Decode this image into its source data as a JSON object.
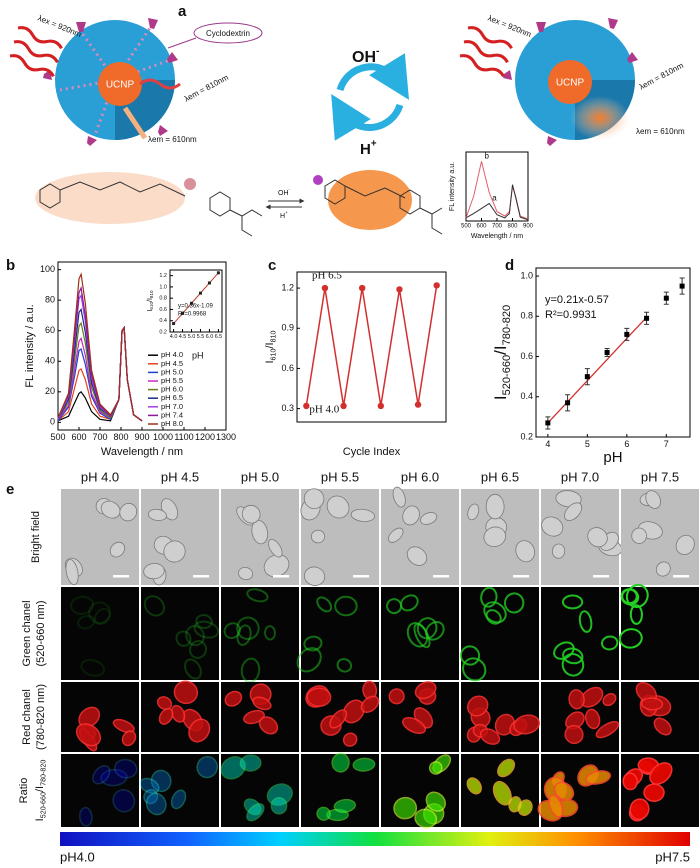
{
  "panel_a": {
    "label": "a",
    "cyclodextrin": "Cyclodextrin",
    "left": {
      "excitation": "λex = 920nm",
      "emission_nir": "λem = 810nm",
      "emission_red": "λem = 610nm",
      "core": "UCNP"
    },
    "right": {
      "excitation": "λex = 920nm",
      "emission_nir": "λem = 810nm",
      "emission_red": "λem = 610nm",
      "core": "UCNP"
    },
    "switch": {
      "base": [
        "OH",
        "-"
      ],
      "acid": [
        "H",
        "+"
      ]
    },
    "reaction": {
      "base": [
        "OH",
        "-"
      ],
      "acid": [
        "H",
        "+"
      ]
    }
  },
  "chart_data": [
    {
      "type": "line",
      "xlabel": "Wavelength / nm",
      "ylabel": "FL intensity a.u.",
      "x": [
        500,
        550,
        600,
        650,
        700,
        750,
        780,
        800,
        820,
        850,
        900
      ],
      "series": [
        {
          "name": "b",
          "color": "#e0606a",
          "values": [
            5,
            40,
            95,
            45,
            15,
            8,
            15,
            55,
            40,
            8,
            3
          ]
        },
        {
          "name": "a",
          "color": "#333333",
          "values": [
            5,
            12,
            20,
            28,
            10,
            5,
            12,
            58,
            38,
            6,
            2
          ]
        }
      ],
      "xlim": [
        500,
        900
      ],
      "xticks": [
        500,
        600,
        700,
        800,
        900
      ],
      "ylim": [
        0,
        110
      ]
    },
    {
      "type": "line",
      "label": "b",
      "xlabel": "Wavelength / nm",
      "ylabel": "FL intensity / a.u.",
      "x": [
        500,
        550,
        580,
        600,
        610,
        630,
        660,
        700,
        750,
        790,
        805,
        815,
        830,
        860,
        900
      ],
      "series": [
        {
          "name": "pH 4.0",
          "color": "#000000",
          "values": [
            1,
            4,
            13,
            19,
            20,
            16,
            7,
            2,
            1,
            15,
            60,
            62,
            28,
            5,
            1
          ]
        },
        {
          "name": "pH 4.5",
          "color": "#e8401c",
          "values": [
            1,
            7,
            23,
            34,
            35,
            28,
            12,
            4,
            2,
            15,
            60,
            62,
            28,
            5,
            1
          ]
        },
        {
          "name": "pH 5.0",
          "color": "#1f3fd0",
          "values": [
            1,
            10,
            31,
            47,
            48,
            38,
            17,
            6,
            2,
            15,
            60,
            62,
            28,
            5,
            1
          ]
        },
        {
          "name": "pH 5.5",
          "color": "#c22bc2",
          "values": [
            2,
            11,
            36,
            53,
            55,
            44,
            19,
            7,
            3,
            15,
            60,
            62,
            28,
            5,
            1
          ]
        },
        {
          "name": "pH 6.0",
          "color": "#6b7a1a",
          "values": [
            2,
            13,
            42,
            63,
            65,
            52,
            23,
            8,
            3,
            15,
            60,
            62,
            28,
            5,
            1
          ]
        },
        {
          "name": "pH 6.5",
          "color": "#1a2a8a",
          "values": [
            2,
            15,
            48,
            72,
            74,
            59,
            26,
            9,
            4,
            15,
            60,
            62,
            28,
            5,
            1
          ]
        },
        {
          "name": "pH 7.0",
          "color": "#a040e0",
          "values": [
            2,
            17,
            54,
            81,
            83,
            66,
            29,
            10,
            4,
            15,
            60,
            62,
            28,
            5,
            1
          ]
        },
        {
          "name": "pH 7.4",
          "color": "#8a1a9a",
          "values": [
            3,
            18,
            57,
            85,
            88,
            70,
            31,
            11,
            4,
            15,
            60,
            62,
            28,
            5,
            1
          ]
        },
        {
          "name": "pH 8.0",
          "color": "#a0301a",
          "values": [
            3,
            19,
            63,
            94,
            97,
            78,
            34,
            12,
            5,
            15,
            60,
            62,
            28,
            5,
            1
          ]
        }
      ],
      "legend_title": "pH",
      "legend": "lower right",
      "xlim": [
        500,
        1300
      ],
      "xticks": [
        500,
        600,
        700,
        800,
        900,
        1000,
        1100,
        1200,
        1300
      ],
      "ylim": [
        -5,
        105
      ],
      "yticks": [
        0,
        20,
        40,
        60,
        80,
        100
      ],
      "inset": {
        "type": "line",
        "ylabel": [
          "I",
          "610",
          "/I",
          "810"
        ],
        "x": [
          4,
          4.5,
          5,
          5.5,
          6,
          6.5
        ],
        "values": [
          0.35,
          0.53,
          0.71,
          0.89,
          1.07,
          1.25
        ],
        "color": "#c0392b",
        "annotations": [
          "y=0.36x-1.09",
          "R²=0.9968"
        ],
        "xlim": [
          3.8,
          6.7
        ],
        "xticks": [
          {
            "value": 4,
            "label": "4.0"
          },
          4.5,
          {
            "value": 5,
            "label": "5.0"
          },
          5.5,
          {
            "value": 6,
            "label": "6.0"
          },
          6.5
        ],
        "ylim": [
          0.2,
          1.3
        ],
        "yticks": [
          0.2,
          0.4,
          0.6,
          0.8,
          {
            "value": 1,
            "label": "1.0"
          },
          1.2
        ]
      }
    },
    {
      "type": "line",
      "label": "c",
      "xlabel": "Cycle Index",
      "ylabel": [
        "I",
        "610",
        "/I",
        "810"
      ],
      "categories": [
        null,
        null,
        null,
        null,
        null,
        null,
        null,
        null
      ],
      "values": [
        0.32,
        1.2,
        0.32,
        1.2,
        0.32,
        1.19,
        0.33,
        1.22
      ],
      "color": "#d32f2f",
      "annotations": [
        "pH 6.5",
        "pH 4.0"
      ],
      "ylim": [
        0.2,
        1.32
      ],
      "yticks": [
        0.3,
        0.6,
        0.9,
        1.2
      ]
    },
    {
      "type": "scatter",
      "label": "d",
      "xlabel": "pH",
      "ylabel": [
        "I",
        "520-660",
        "/I",
        "780-820"
      ],
      "x": [
        4,
        4.5,
        5,
        5.5,
        6,
        6.5,
        7,
        7.4
      ],
      "values": [
        0.27,
        0.37,
        0.5,
        0.62,
        0.71,
        0.79,
        0.89,
        0.95
      ],
      "errors": [
        0.03,
        0.04,
        0.04,
        0.02,
        0.03,
        0.03,
        0.03,
        0.04
      ],
      "color": "#000000",
      "fit": {
        "x": [
          4,
          6.5
        ],
        "values": [
          0.27,
          0.795
        ],
        "color": "#d32f2f"
      },
      "annotations": [
        "y=0.21x-0.57",
        "R²=0.9931"
      ],
      "xlim": [
        3.7,
        7.6
      ],
      "xticks": [
        4,
        5,
        6,
        7
      ],
      "ylim": [
        0.2,
        1.04
      ],
      "yticks": [
        0.2,
        0.4,
        0.6,
        0.8,
        {
          "value": 1,
          "label": "1.0"
        }
      ]
    }
  ],
  "panel_e": {
    "label": "e",
    "columns": [
      "pH 4.0",
      "pH 4.5",
      "pH 5.0",
      "pH 5.5",
      "pH 6.0",
      "pH 6.5",
      "pH 7.0",
      "pH 7.5"
    ],
    "rows": {
      "bright": "Bright field",
      "green": [
        "Green chanel",
        "(520-660 nm)"
      ],
      "red": [
        "Red chanel",
        "(780-820 nm)"
      ],
      "ratio_title": "Ratio",
      "ratio": [
        "I",
        "520-660",
        "/I",
        "780-820"
      ]
    },
    "colorbar": [
      "pH4.0",
      "pH7.5"
    ]
  }
}
